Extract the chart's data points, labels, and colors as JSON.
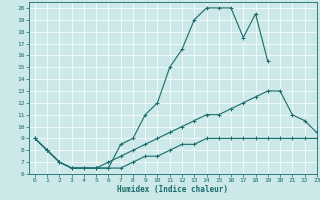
{
  "xlabel": "Humidex (Indice chaleur)",
  "xlim": [
    -0.5,
    23
  ],
  "ylim": [
    6,
    20.5
  ],
  "xticks": [
    0,
    1,
    2,
    3,
    4,
    5,
    6,
    7,
    8,
    9,
    10,
    11,
    12,
    13,
    14,
    15,
    16,
    17,
    18,
    19,
    20,
    21,
    22,
    23
  ],
  "yticks": [
    6,
    7,
    8,
    9,
    10,
    11,
    12,
    13,
    14,
    15,
    16,
    17,
    18,
    19,
    20
  ],
  "bg_color": "#cce8e8",
  "line_color": "#1a6b6b",
  "grid_color": "#ffffff",
  "lines": [
    {
      "x": [
        0,
        1,
        2,
        3,
        4,
        5,
        6,
        7,
        8,
        9,
        10,
        11,
        12,
        13,
        14,
        15,
        16,
        17,
        18,
        19
      ],
      "y": [
        9,
        8,
        7,
        6.5,
        6.5,
        6.5,
        6.5,
        8.5,
        9,
        11,
        12,
        15,
        16.5,
        19,
        20,
        20,
        20,
        17.5,
        19.5,
        15.5
      ]
    },
    {
      "x": [
        0,
        1,
        2,
        3,
        4,
        5,
        6,
        7,
        8,
        9,
        10,
        11,
        12,
        13,
        14,
        15,
        16,
        17,
        18,
        19,
        20,
        21,
        22,
        23
      ],
      "y": [
        9,
        8,
        7,
        6.5,
        6.5,
        6.5,
        7,
        7.5,
        8,
        8.5,
        9,
        9.5,
        10,
        10.5,
        11,
        11,
        11.5,
        12,
        12.5,
        13,
        13,
        11,
        10.5,
        9.5
      ]
    },
    {
      "x": [
        0,
        1,
        2,
        3,
        4,
        5,
        6,
        7,
        8,
        9,
        10,
        11,
        12,
        13,
        14,
        15,
        16,
        17,
        18,
        19,
        20,
        21,
        22,
        23
      ],
      "y": [
        9,
        8,
        7,
        6.5,
        6.5,
        6.5,
        6.5,
        6.5,
        7,
        7.5,
        7.5,
        8,
        8.5,
        8.5,
        9,
        9,
        9,
        9,
        9,
        9,
        9,
        9,
        9,
        9
      ]
    }
  ]
}
